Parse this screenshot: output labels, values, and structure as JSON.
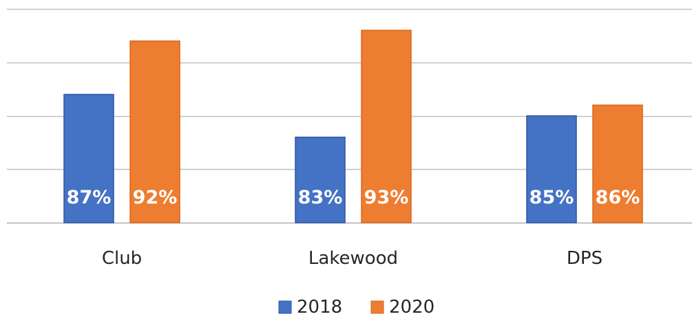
{
  "chart_data": {
    "type": "bar",
    "categories": [
      "Club",
      "Lakewood",
      "DPS"
    ],
    "series": [
      {
        "name": "2018",
        "values": [
          87,
          83,
          85
        ],
        "labels": [
          "87%",
          "83%",
          "85%"
        ],
        "color": "#4472c4",
        "border": "#2f55a4"
      },
      {
        "name": "2020",
        "values": [
          92,
          93,
          86
        ],
        "labels": [
          "92%",
          "93%",
          "86%"
        ],
        "color": "#ed7d31",
        "border": "#d9661c"
      }
    ],
    "ylim": [
      75,
      95
    ],
    "gridlines": [
      75,
      80,
      85,
      90,
      95
    ],
    "grid": true,
    "legend": "bottom-center",
    "gridline_color": "#bfbfbf"
  }
}
